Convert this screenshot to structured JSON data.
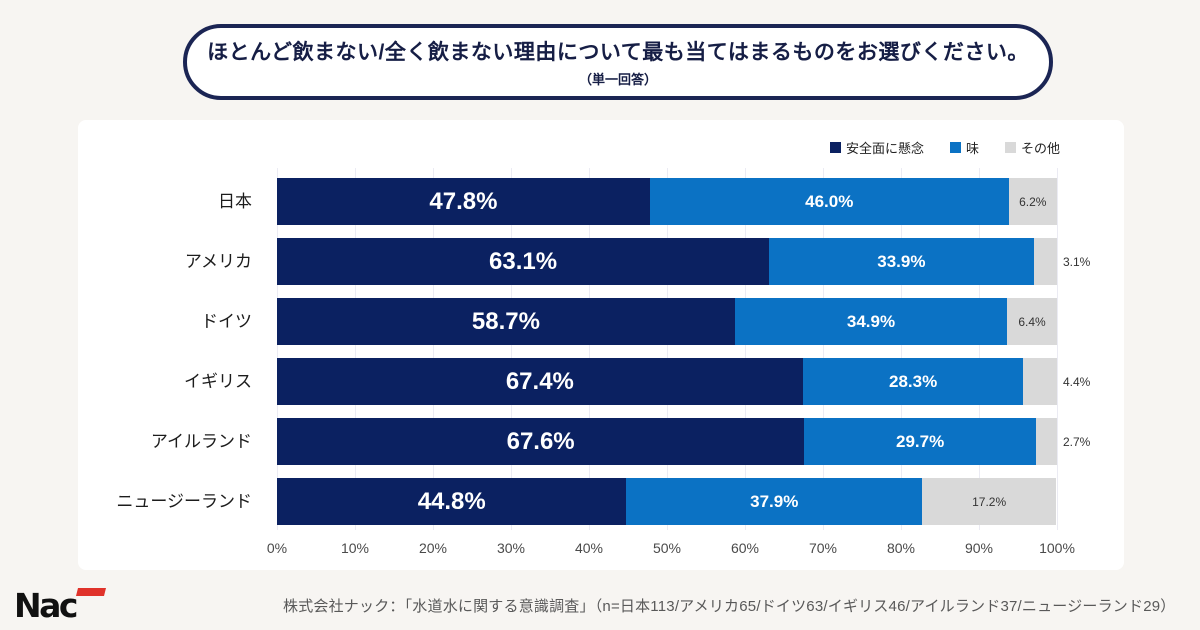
{
  "title": {
    "main": "ほとんど飲まない/全く飲まない理由について最も当てはまるものをお選びください。",
    "sub": "（単一回答）"
  },
  "legend": [
    {
      "label": "安全面に懸念",
      "color": "#0b2161"
    },
    {
      "label": "味",
      "color": "#0b72c4"
    },
    {
      "label": "その他",
      "color": "#d9d9d9"
    }
  ],
  "chart_data": {
    "type": "bar",
    "stacked": true,
    "orientation": "horizontal",
    "categories": [
      "日本",
      "アメリカ",
      "ドイツ",
      "イギリス",
      "アイルランド",
      "ニュージーランド"
    ],
    "series": [
      {
        "name": "安全面に懸念",
        "color": "#0b2161",
        "values": [
          47.8,
          63.1,
          58.7,
          67.4,
          67.6,
          44.8
        ]
      },
      {
        "name": "味",
        "color": "#0b72c4",
        "values": [
          46.0,
          33.9,
          34.9,
          28.3,
          29.7,
          37.9
        ]
      },
      {
        "name": "その他",
        "color": "#d9d9d9",
        "values": [
          6.2,
          3.1,
          6.4,
          4.4,
          2.7,
          17.2
        ]
      }
    ],
    "x_ticks": [
      "0%",
      "10%",
      "20%",
      "30%",
      "40%",
      "50%",
      "60%",
      "70%",
      "80%",
      "90%",
      "100%"
    ],
    "xlim": [
      0,
      100
    ],
    "grid": true,
    "legend_position": "top-right",
    "value_suffix": "%"
  },
  "footer": {
    "source": "株式会社ナック：「水道水に関する意識調査」（n=日本113/アメリカ65/ドイツ63/イギリス46/アイルランド37/ニュージーランド29）"
  },
  "logo": {
    "text": "Nac",
    "accent_color": "#e0322a",
    "text_color": "#111111"
  }
}
